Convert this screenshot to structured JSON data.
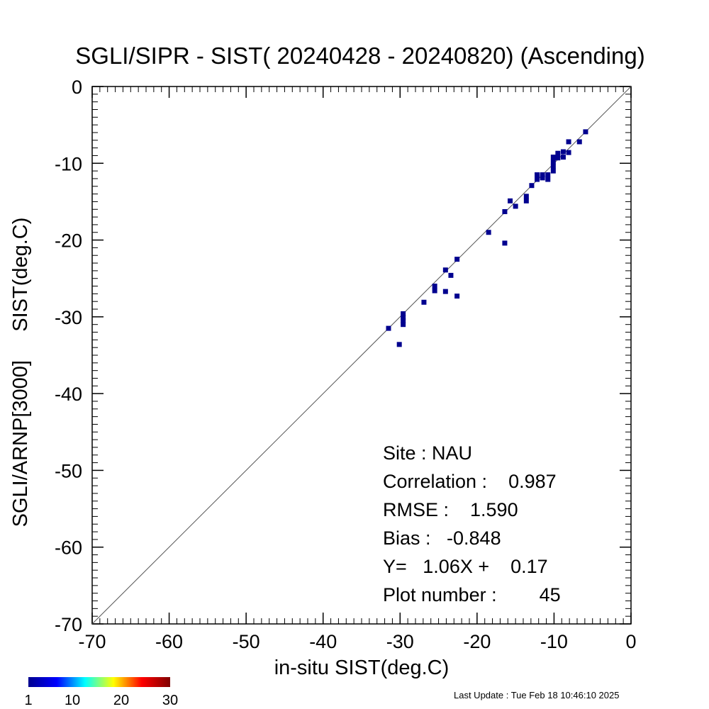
{
  "chart_data": {
    "type": "scatter",
    "title": "SGLI/SIPR - SIST( 20240428 - 20240820) (Ascending)",
    "xlabel": "in-situ SIST(deg.C)",
    "ylabel": "SGLI/ARNP[3000]     SIST(deg.C)",
    "xlim": [
      -70,
      0
    ],
    "ylim": [
      -70,
      0
    ],
    "x_ticks": [
      -70,
      -60,
      -50,
      -40,
      -30,
      -20,
      -10,
      0
    ],
    "y_ticks": [
      0,
      -10,
      -20,
      -30,
      -40,
      -50,
      -60,
      -70
    ],
    "x_tick_labels": [
      "-70",
      "-60",
      "-50",
      "-40",
      "-30",
      "-20",
      "-10",
      "0"
    ],
    "y_tick_labels": [
      "0",
      "-10",
      "-20",
      "-30",
      "-40",
      "-50",
      "-60",
      "-70"
    ],
    "grid": false,
    "reference_line": "1:1",
    "points": [
      {
        "x": -31.5,
        "y": -31.5
      },
      {
        "x": -30.1,
        "y": -33.6
      },
      {
        "x": -29.6,
        "y": -29.6
      },
      {
        "x": -29.6,
        "y": -30.1
      },
      {
        "x": -29.6,
        "y": -30.5
      },
      {
        "x": -29.6,
        "y": -31.0
      },
      {
        "x": -26.9,
        "y": -28.1
      },
      {
        "x": -25.5,
        "y": -26.0
      },
      {
        "x": -25.5,
        "y": -26.6
      },
      {
        "x": -24.1,
        "y": -23.9
      },
      {
        "x": -24.1,
        "y": -26.7
      },
      {
        "x": -23.4,
        "y": -24.6
      },
      {
        "x": -22.6,
        "y": -22.5
      },
      {
        "x": -22.6,
        "y": -27.3
      },
      {
        "x": -18.5,
        "y": -19.0
      },
      {
        "x": -16.4,
        "y": -20.4
      },
      {
        "x": -16.4,
        "y": -16.3
      },
      {
        "x": -15.7,
        "y": -14.9
      },
      {
        "x": -15.0,
        "y": -15.6
      },
      {
        "x": -13.6,
        "y": -14.3
      },
      {
        "x": -13.6,
        "y": -14.9
      },
      {
        "x": -12.9,
        "y": -12.9
      },
      {
        "x": -12.2,
        "y": -11.5
      },
      {
        "x": -12.2,
        "y": -12.1
      },
      {
        "x": -11.5,
        "y": -11.5
      },
      {
        "x": -11.5,
        "y": -11.9
      },
      {
        "x": -10.8,
        "y": -11.5
      },
      {
        "x": -10.8,
        "y": -12.1
      },
      {
        "x": -10.1,
        "y": -9.2
      },
      {
        "x": -10.1,
        "y": -9.8
      },
      {
        "x": -10.1,
        "y": -10.4
      },
      {
        "x": -10.1,
        "y": -11.0
      },
      {
        "x": -9.5,
        "y": -8.7
      },
      {
        "x": -9.5,
        "y": -9.3
      },
      {
        "x": -8.8,
        "y": -8.5
      },
      {
        "x": -8.8,
        "y": -9.2
      },
      {
        "x": -8.1,
        "y": -7.2
      },
      {
        "x": -8.1,
        "y": -8.6
      },
      {
        "x": -6.7,
        "y": -7.2
      },
      {
        "x": -5.9,
        "y": -5.9
      }
    ],
    "point_color": "#00008f"
  },
  "stats": {
    "site": "Site : NAU",
    "correlation": "Correlation :    0.987",
    "rmse": "RMSE :    1.590",
    "bias": "Bias :   -0.848",
    "fit": "Y=   1.06X +    0.17",
    "plot_number": "Plot number :        45"
  },
  "colorbar": {
    "labels": [
      "1",
      "10",
      "20",
      "30"
    ],
    "min": 1,
    "max": 30,
    "colors": [
      "#00008f",
      "#0000ff",
      "#00ffff",
      "#ffff00",
      "#ff0000",
      "#800000"
    ]
  },
  "last_update": "Last Update : Tue Feb 18 10:46:10 2025"
}
